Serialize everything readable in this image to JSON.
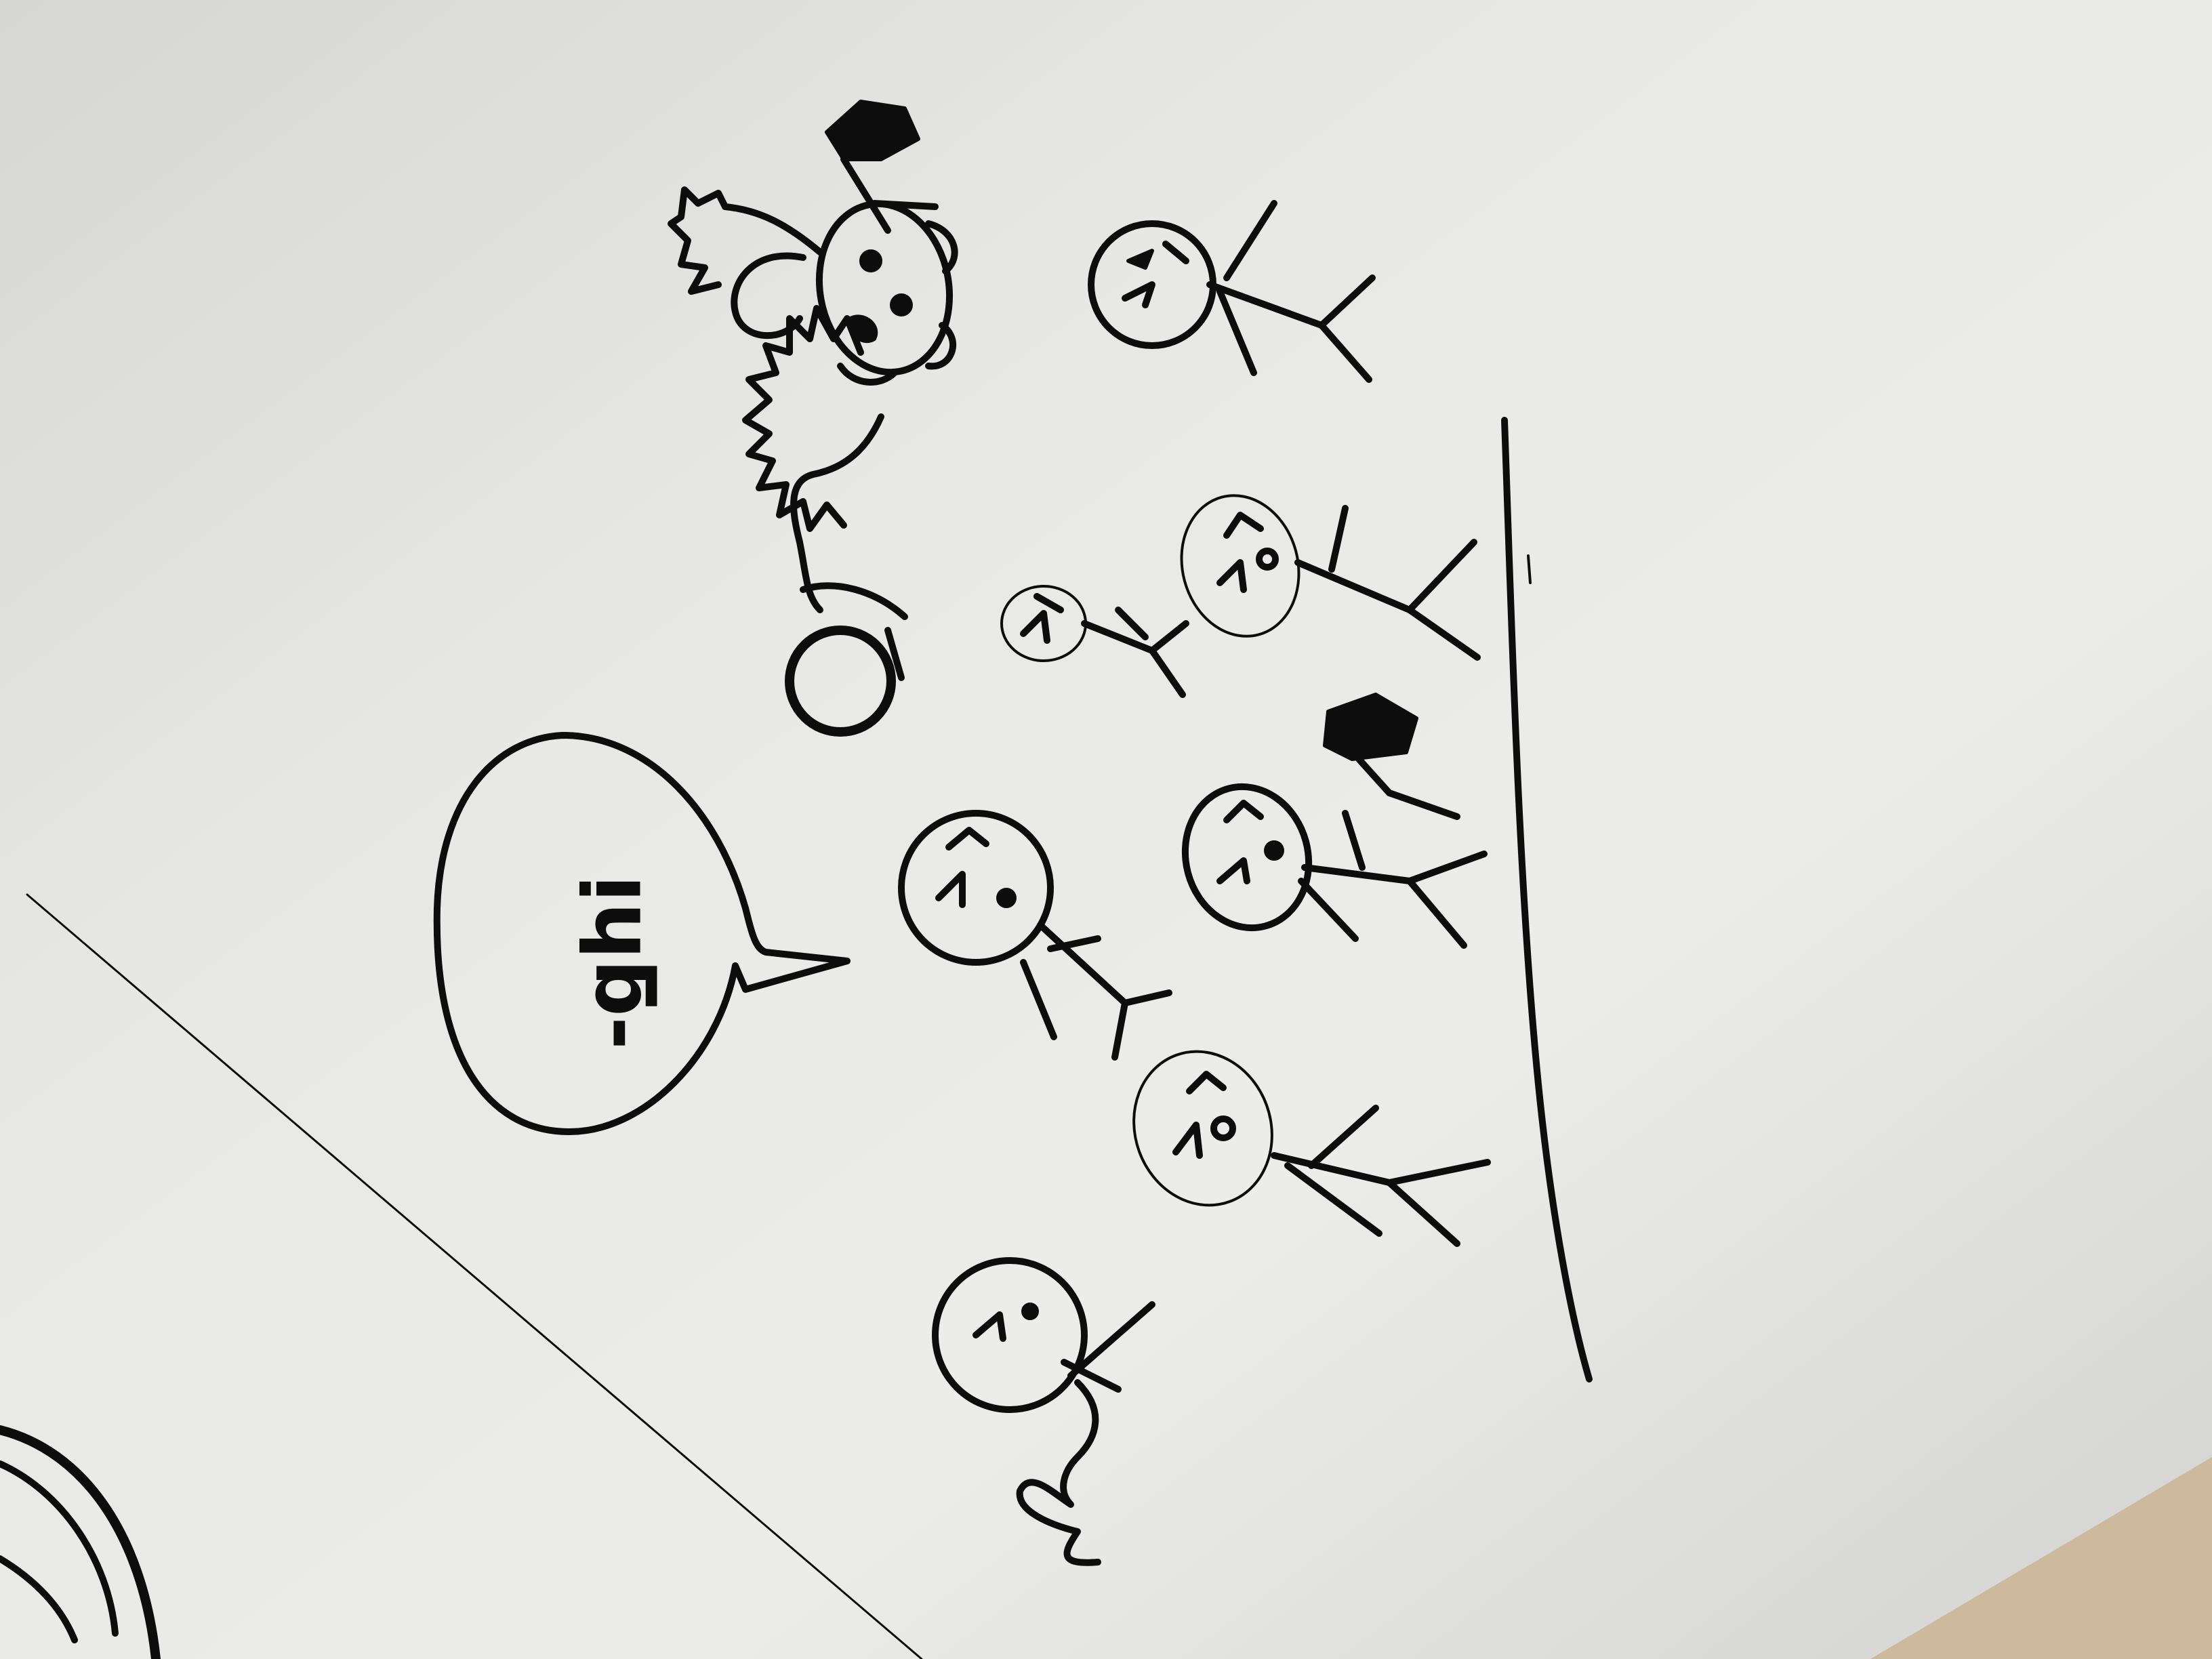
{
  "colors": {
    "board": "#ececea",
    "board_shadow": "#d0d0ce",
    "ink": "#0d0d0d",
    "desk": "#cdb99c"
  },
  "speech_bubble": {
    "text": "ᴉɥƃ-"
  }
}
